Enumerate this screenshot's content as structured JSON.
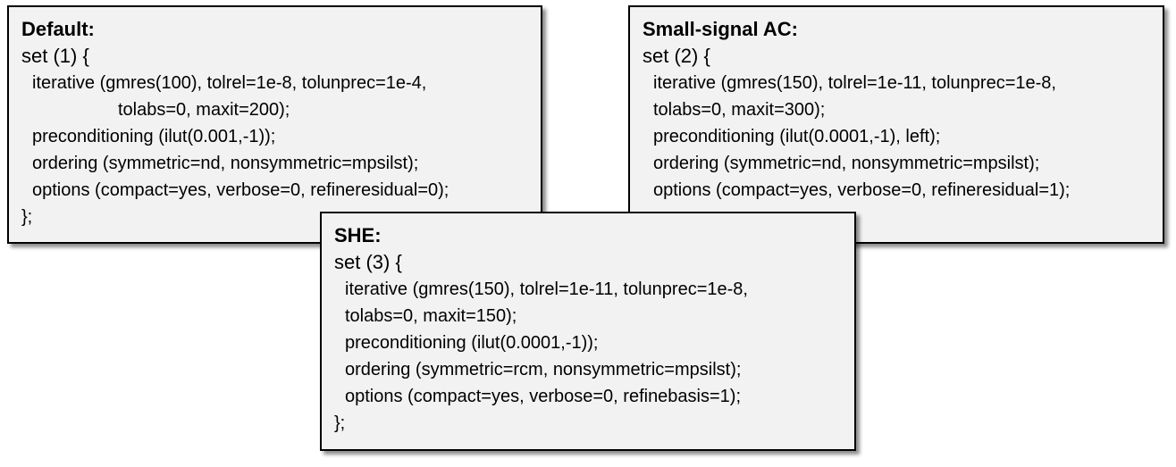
{
  "default": {
    "heading": "Default:",
    "set": "set (1) {",
    "iterative": "iterative (gmres(100), tolrel=1e-8, tolunprec=1e-4,",
    "iterative_cont": "tolabs=0, maxit=200);",
    "preconditioning": "preconditioning (ilut(0.001,-1));",
    "ordering": "ordering (symmetric=nd, nonsymmetric=mpsilst);",
    "options": "options (compact=yes, verbose=0, refineresidual=0);",
    "close": "};"
  },
  "small_signal_ac": {
    "heading": "Small-signal AC:",
    "set": "set (2) {",
    "iterative": "iterative (gmres(150), tolrel=1e-11, tolunprec=1e-8,",
    "iterative_cont": "tolabs=0, maxit=300);",
    "preconditioning": "preconditioning (ilut(0.0001,-1), left);",
    "ordering": "ordering (symmetric=nd, nonsymmetric=mpsilst);",
    "options": "options (compact=yes, verbose=0, refineresidual=1);"
  },
  "she": {
    "heading": "SHE:",
    "set": "set (3) {",
    "iterative": "iterative (gmres(150), tolrel=1e-11, tolunprec=1e-8,",
    "iterative_cont": "tolabs=0, maxit=150);",
    "preconditioning": "preconditioning (ilut(0.0001,-1));",
    "ordering": "ordering (symmetric=rcm, nonsymmetric=mpsilst);",
    "options": "options (compact=yes, verbose=0, refinebasis=1);",
    "close": "};"
  }
}
